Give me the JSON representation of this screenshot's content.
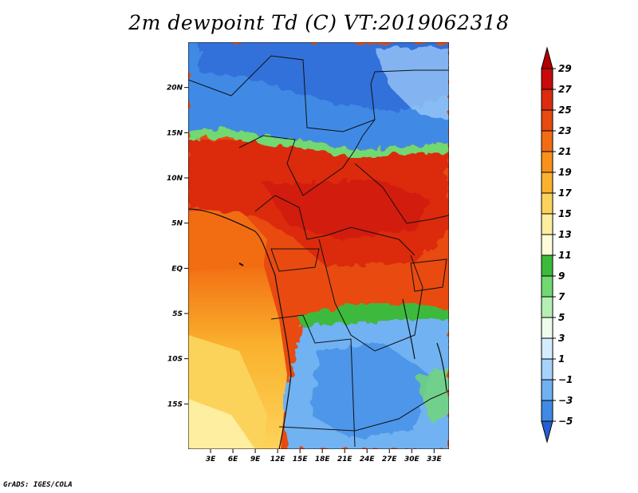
{
  "title": "2m dewpoint Td (C) VT:2019062318",
  "footer": "GrADS: IGES/COLA",
  "map": {
    "lon_range": [
      0,
      35
    ],
    "lat_range": [
      -20,
      25
    ],
    "lat_ticks": [
      {
        "value": 20,
        "label": "20N"
      },
      {
        "value": 15,
        "label": "15N"
      },
      {
        "value": 10,
        "label": "10N"
      },
      {
        "value": 5,
        "label": "5N"
      },
      {
        "value": 0,
        "label": "EQ"
      },
      {
        "value": -5,
        "label": "5S"
      },
      {
        "value": -10,
        "label": "10S"
      },
      {
        "value": -15,
        "label": "15S"
      }
    ],
    "lon_ticks": [
      {
        "value": 3,
        "label": "3E"
      },
      {
        "value": 6,
        "label": "6E"
      },
      {
        "value": 9,
        "label": "9E"
      },
      {
        "value": 12,
        "label": "12E"
      },
      {
        "value": 15,
        "label": "15E"
      },
      {
        "value": 18,
        "label": "18E"
      },
      {
        "value": 21,
        "label": "21E"
      },
      {
        "value": 24,
        "label": "24E"
      },
      {
        "value": 27,
        "label": "27E"
      },
      {
        "value": 30,
        "label": "30E"
      },
      {
        "value": 33,
        "label": "33E"
      }
    ]
  },
  "colorbar": {
    "levels": [
      29,
      27,
      25,
      23,
      21,
      19,
      17,
      15,
      13,
      11,
      9,
      7,
      5,
      3,
      1,
      -1,
      -3,
      -5
    ],
    "labels": [
      "29",
      "27",
      "25",
      "23",
      "21",
      "19",
      "17",
      "15",
      "13",
      "11",
      "9",
      "7",
      "5",
      "3",
      "1",
      "−1",
      "−3",
      "−5"
    ],
    "colors_top_to_bottom": [
      "#b40000",
      "#c80a0a",
      "#dc2b0f",
      "#e84a10",
      "#f26d12",
      "#f8901a",
      "#fab22e",
      "#fcd35a",
      "#fdeea0",
      "#fefcd8",
      "#3cba3c",
      "#72d872",
      "#b4f0b4",
      "#eefcee",
      "#d4ecff",
      "#a6d2fb",
      "#6fb2f2",
      "#3f8ae6",
      "#2660d0"
    ]
  }
}
